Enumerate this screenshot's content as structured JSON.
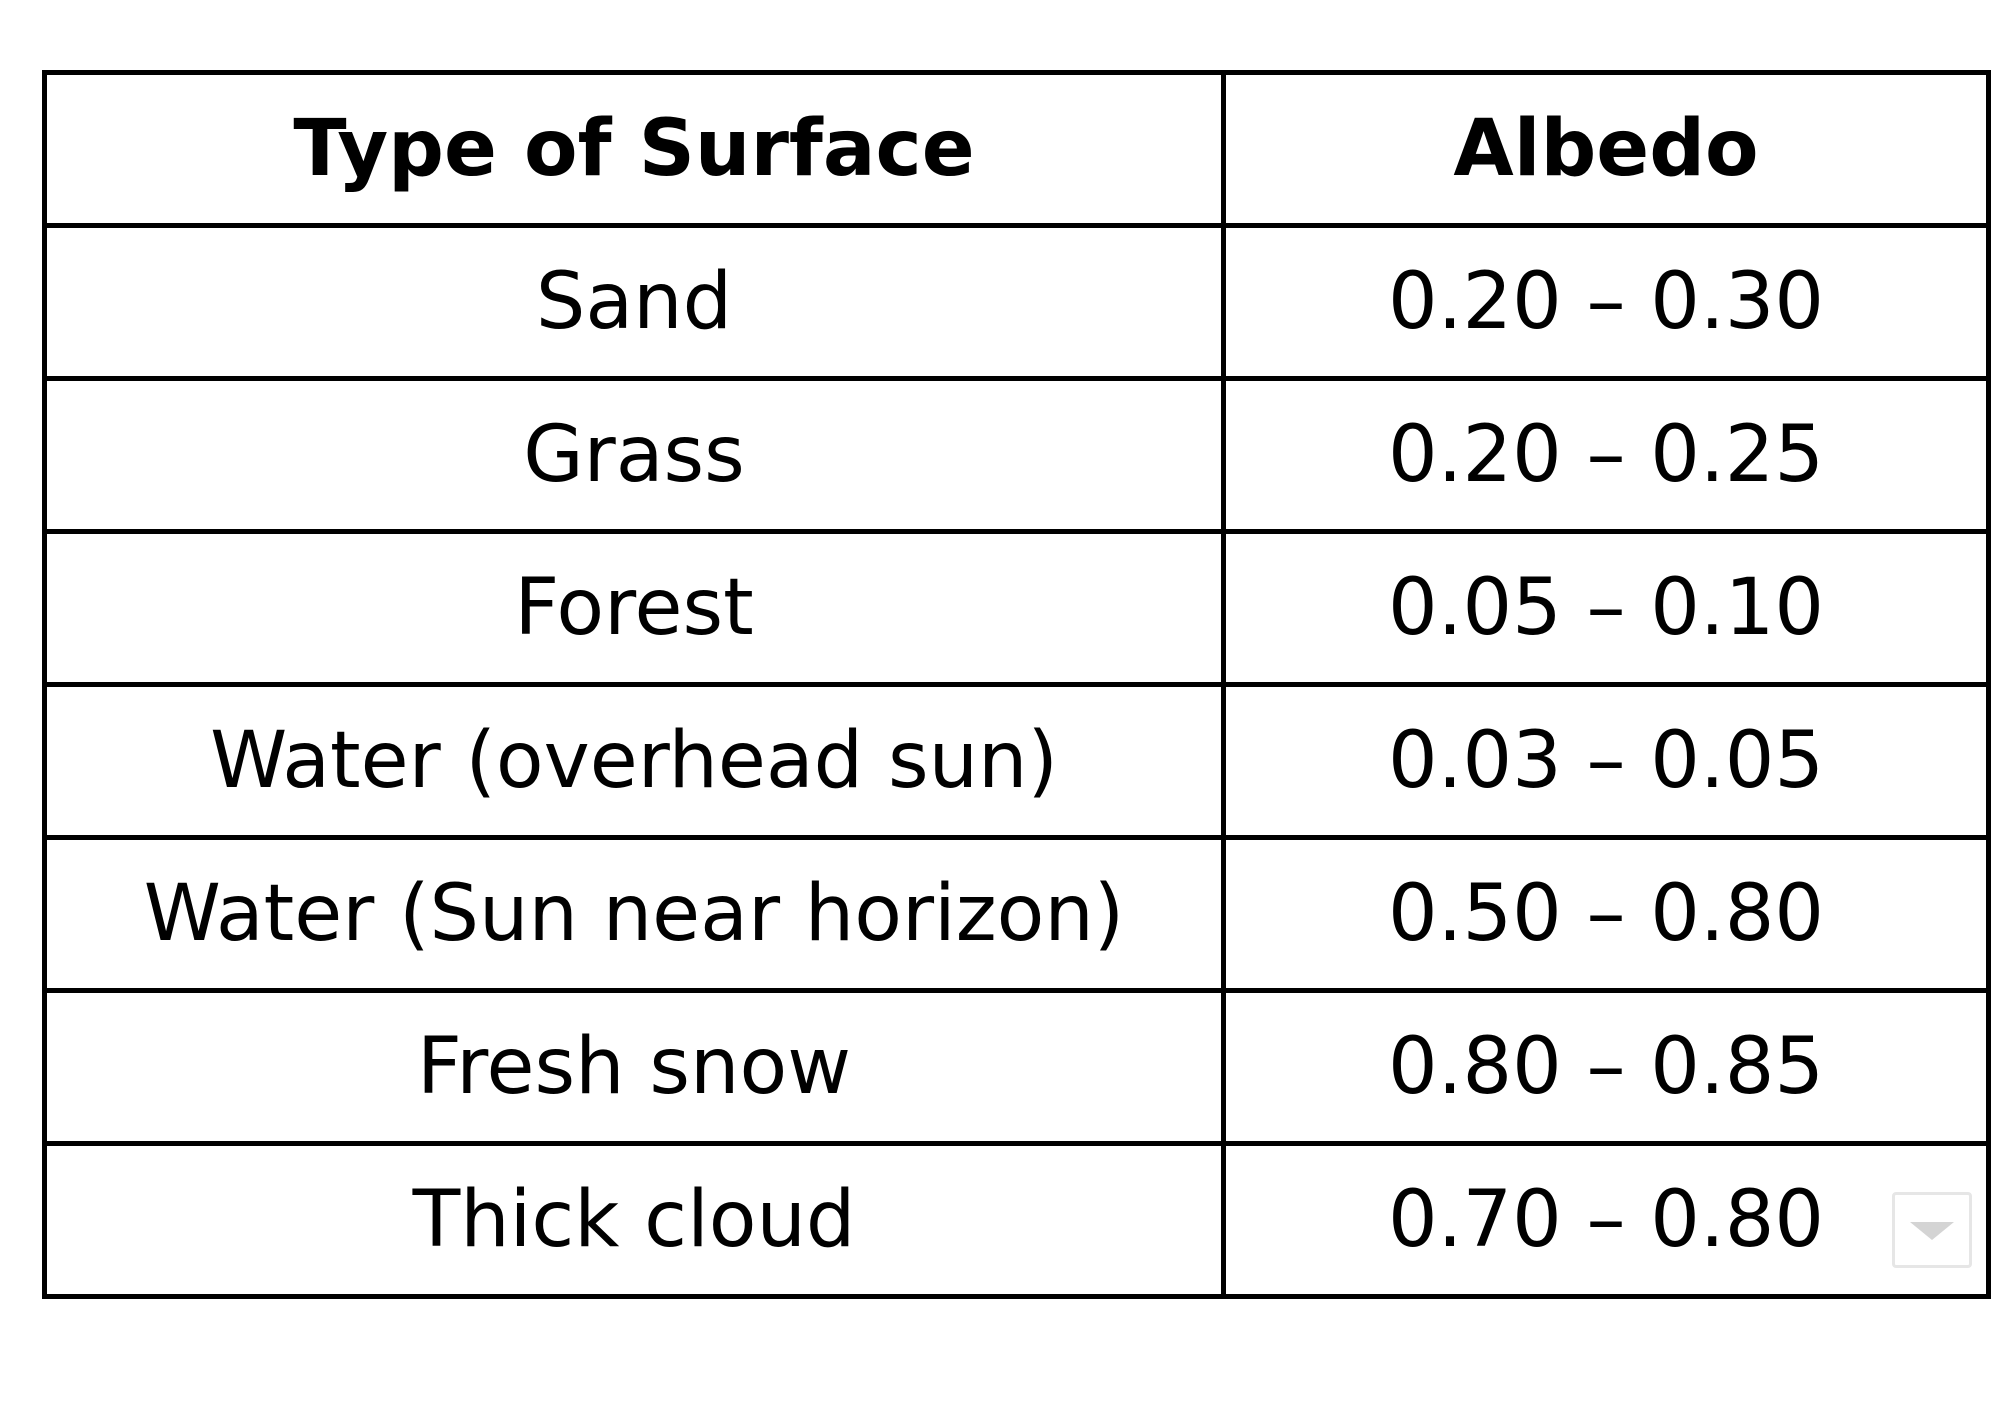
{
  "table": {
    "headers": [
      "Type of Surface",
      "Albedo"
    ],
    "rows": [
      [
        "Sand",
        "0.20 – 0.30"
      ],
      [
        "Grass",
        "0.20 – 0.25"
      ],
      [
        "Forest",
        "0.05 – 0.10"
      ],
      [
        "Water (overhead sun)",
        "0.03 – 0.05"
      ],
      [
        "Water (Sun near horizon)",
        "0.50 – 0.80"
      ],
      [
        "Fresh snow",
        "0.80 – 0.85"
      ],
      [
        "Thick cloud",
        "0.70 – 0.80"
      ]
    ]
  },
  "icons": {
    "dropdown": "chevron-down-icon"
  }
}
